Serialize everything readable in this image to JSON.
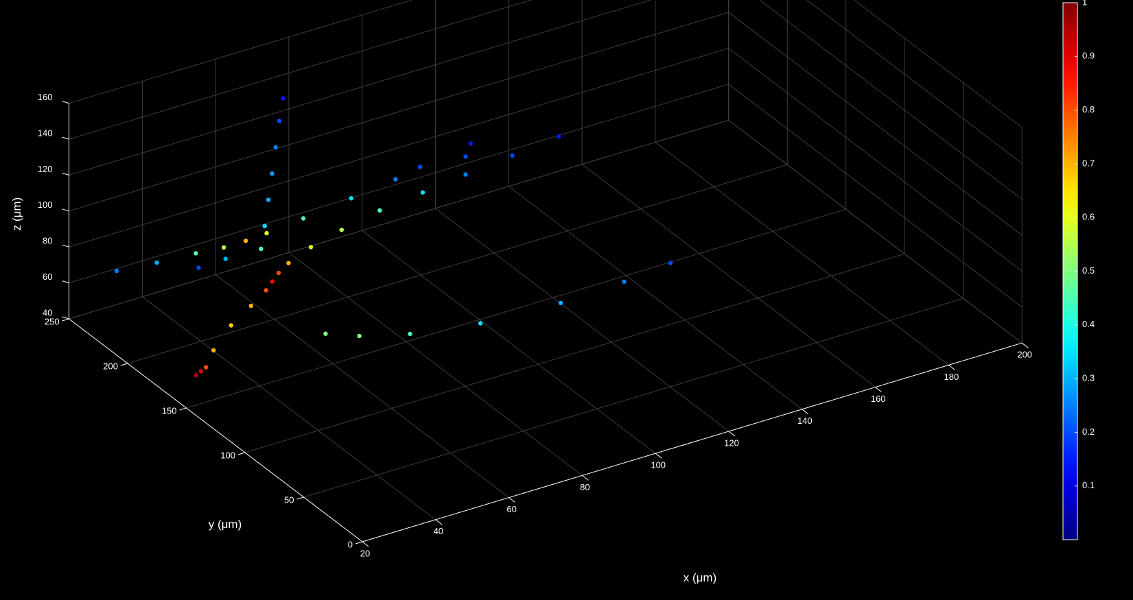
{
  "chart_data": {
    "type": "scatter",
    "title": "",
    "xlabel": "x (μm)",
    "ylabel": "y (μm)",
    "zlabel": "z (μm)",
    "x_ticks": [
      20,
      40,
      60,
      80,
      100,
      120,
      140,
      160,
      180,
      200
    ],
    "y_ticks": [
      0,
      50,
      100,
      150,
      200,
      250
    ],
    "z_ticks": [
      40,
      60,
      80,
      100,
      120,
      140,
      160
    ],
    "xlim": [
      20,
      200
    ],
    "ylim": [
      0,
      250
    ],
    "zlim": [
      40,
      160
    ],
    "grid": true,
    "colormap": "jet",
    "colorbar": {
      "range": [
        0,
        1
      ],
      "ticks": [
        0.1,
        0.2,
        0.3,
        0.4,
        0.5,
        0.6,
        0.7,
        0.8,
        0.9,
        1
      ]
    },
    "background": "#000000",
    "axis_color": "#ffffff",
    "grid_color": "#4a4a4a",
    "series": [
      {
        "points_xyz_value": [
          [
            22,
            148,
            58,
            0.95
          ],
          [
            24,
            150,
            58,
            0.9
          ],
          [
            26,
            152,
            58,
            0.8
          ],
          [
            30,
            158,
            62,
            0.7
          ],
          [
            38,
            168,
            66,
            0.68
          ],
          [
            46,
            176,
            68,
            0.7
          ],
          [
            52,
            182,
            70,
            0.8
          ],
          [
            55,
            186,
            71,
            0.87
          ],
          [
            58,
            190,
            72,
            0.8
          ],
          [
            62,
            194,
            73,
            0.7
          ],
          [
            70,
            200,
            74,
            0.6
          ],
          [
            80,
            205,
            75,
            0.55
          ],
          [
            92,
            210,
            76,
            0.45
          ],
          [
            105,
            214,
            76,
            0.35
          ],
          [
            118,
            218,
            76,
            0.25
          ],
          [
            132,
            222,
            76,
            0.2
          ],
          [
            146,
            226,
            76,
            0.15
          ],
          [
            25,
            225,
            76,
            0.25
          ],
          [
            35,
            222,
            76,
            0.3
          ],
          [
            45,
            220,
            76,
            0.45
          ],
          [
            52,
            218,
            76,
            0.55
          ],
          [
            58,
            218,
            76,
            0.7
          ],
          [
            64,
            219,
            76,
            0.6
          ],
          [
            75,
            222,
            76,
            0.45
          ],
          [
            90,
            228,
            75,
            0.35
          ],
          [
            104,
            234,
            74,
            0.25
          ],
          [
            112,
            238,
            74,
            0.2
          ],
          [
            58,
            205,
            78,
            0.45
          ],
          [
            59,
            205,
            90,
            0.35
          ],
          [
            60,
            205,
            104,
            0.3
          ],
          [
            61,
            205,
            118,
            0.28
          ],
          [
            62,
            205,
            132,
            0.25
          ],
          [
            63,
            205,
            146,
            0.2
          ],
          [
            64,
            205,
            158,
            0.15
          ],
          [
            40,
            202,
            80,
            0.2
          ],
          [
            48,
            204,
            79,
            0.3
          ],
          [
            58,
            150,
            58,
            0.5
          ],
          [
            64,
            140,
            58,
            0.5
          ],
          [
            74,
            128,
            59,
            0.45
          ],
          [
            90,
            118,
            60,
            0.35
          ],
          [
            110,
            112,
            62,
            0.3
          ],
          [
            126,
            108,
            66,
            0.25
          ],
          [
            138,
            106,
            70,
            0.2
          ],
          [
            118,
            218,
            86,
            0.2
          ],
          [
            120,
            220,
            91,
            0.15
          ]
        ]
      }
    ]
  }
}
